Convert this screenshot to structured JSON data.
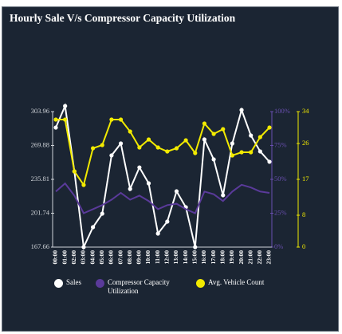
{
  "chart_data": {
    "type": "line",
    "title": "Hourly Sale V/s Compressor Capacity Utilization",
    "categories": [
      "00:00",
      "01:00",
      "02:00",
      "03:00",
      "04:00",
      "05:00",
      "06:00",
      "07:00",
      "08:00",
      "09:00",
      "10:00",
      "11:00",
      "12:00",
      "13:00",
      "14:00",
      "15:00",
      "16:00",
      "17:00",
      "18:00",
      "19:00",
      "20:00",
      "21:00",
      "22:00",
      "23:00"
    ],
    "series": [
      {
        "name": "Sales",
        "color": "#ffffff",
        "axis": "y",
        "markers": true,
        "values": [
          287.9,
          309.6,
          243.8,
          167.66,
          187.7,
          201.3,
          259.9,
          271.9,
          226.2,
          247.8,
          231.8,
          181.3,
          193.3,
          223.8,
          207.8,
          167.66,
          275.9,
          255.9,
          219.8,
          271.9,
          305.6,
          279.9,
          263.9,
          253.5
        ]
      },
      {
        "name": "Compressor Capacity Utilization",
        "color": "#5a3a9a",
        "axis": "y2",
        "markers": false,
        "values": [
          41,
          47,
          38,
          25,
          28,
          31,
          35,
          40,
          35,
          38,
          34,
          28,
          31,
          32,
          28,
          25,
          41,
          39,
          34,
          41,
          46,
          44,
          41,
          40
        ]
      },
      {
        "name": "Avg. Vehicle Count",
        "color": "#f2ea00",
        "axis": "y3",
        "markers": true,
        "values": [
          32,
          32,
          19,
          15.6,
          24.8,
          25.6,
          32,
          32,
          29,
          25,
          27,
          25,
          24,
          24.8,
          26.8,
          23.6,
          31,
          28.4,
          29.6,
          23,
          23.8,
          23.8,
          27.6,
          30
        ]
      }
    ],
    "ylim": [
      167.66,
      303.96
    ],
    "yticks": [
      167.66,
      201.74,
      235.81,
      269.88,
      303.96
    ],
    "y2lim": [
      0,
      100
    ],
    "y2ticks": [
      {
        "value": 0,
        "label": "0%"
      },
      {
        "value": 25,
        "label": "25%"
      },
      {
        "value": 50,
        "label": "50%"
      },
      {
        "value": 75,
        "label": "75%"
      },
      {
        "value": 100,
        "label": "100%"
      }
    ],
    "y3lim": [
      0,
      34
    ],
    "y3ticks": [
      0,
      8,
      17,
      26,
      34
    ],
    "legend": "bottom"
  }
}
